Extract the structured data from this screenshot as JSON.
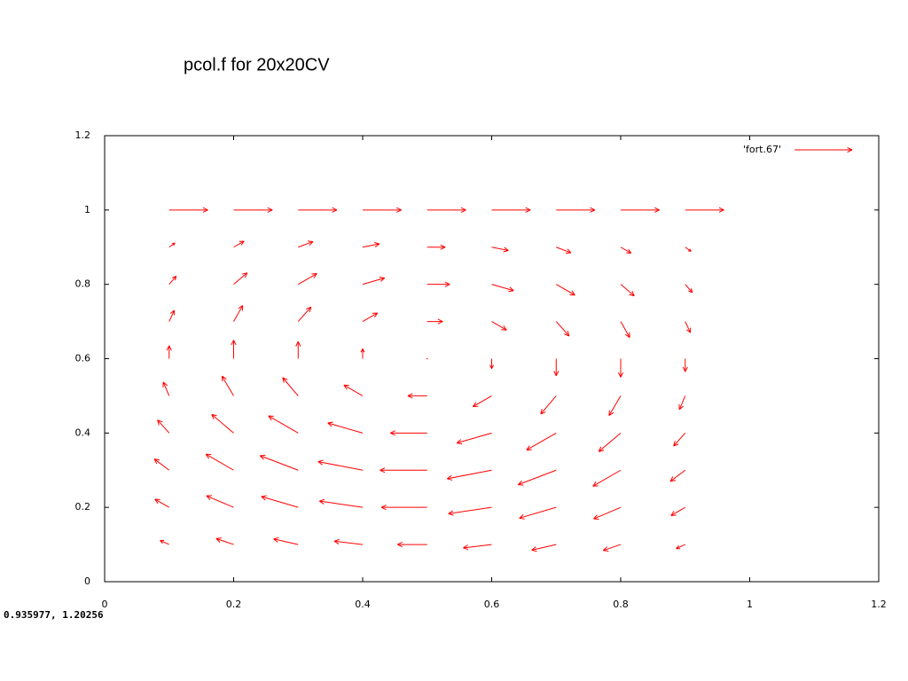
{
  "chart_data": {
    "type": "vector",
    "title": "pcol.f for 20x20CV",
    "legend": "'fort.67'",
    "legend_position": "top-right",
    "status": "0.935977,  1.20256",
    "color": "#ff0000",
    "xlim": [
      0,
      1.2
    ],
    "ylim": [
      0,
      1.2
    ],
    "xticks": [
      0,
      0.2,
      0.4,
      0.6,
      0.8,
      1,
      1.2
    ],
    "yticks": [
      0,
      0.2,
      0.4,
      0.6,
      0.8,
      1,
      1.2
    ],
    "x": [
      0.1,
      0.2,
      0.3,
      0.4,
      0.5,
      0.6,
      0.7,
      0.8,
      0.9,
      0.1,
      0.2,
      0.3,
      0.4,
      0.5,
      0.6,
      0.7,
      0.8,
      0.9,
      0.1,
      0.2,
      0.3,
      0.4,
      0.5,
      0.6,
      0.7,
      0.8,
      0.9,
      0.1,
      0.2,
      0.3,
      0.4,
      0.5,
      0.6,
      0.7,
      0.8,
      0.9,
      0.1,
      0.2,
      0.3,
      0.4,
      0.5,
      0.6,
      0.7,
      0.8,
      0.9,
      0.1,
      0.2,
      0.3,
      0.4,
      0.5,
      0.6,
      0.7,
      0.8,
      0.9,
      0.1,
      0.2,
      0.3,
      0.4,
      0.5,
      0.6,
      0.7,
      0.8,
      0.9,
      0.1,
      0.2,
      0.3,
      0.4,
      0.5,
      0.6,
      0.7,
      0.8,
      0.9,
      0.1,
      0.2,
      0.3,
      0.4,
      0.5,
      0.6,
      0.7,
      0.8,
      0.9,
      0.1,
      0.2,
      0.3,
      0.4,
      0.5,
      0.6,
      0.7,
      0.8,
      0.9
    ],
    "y": [
      0.1,
      0.1,
      0.1,
      0.1,
      0.1,
      0.1,
      0.1,
      0.1,
      0.1,
      0.2,
      0.2,
      0.2,
      0.2,
      0.2,
      0.2,
      0.2,
      0.2,
      0.2,
      0.3,
      0.3,
      0.3,
      0.3,
      0.3,
      0.3,
      0.3,
      0.3,
      0.3,
      0.4,
      0.4,
      0.4,
      0.4,
      0.4,
      0.4,
      0.4,
      0.4,
      0.4,
      0.5,
      0.5,
      0.5,
      0.5,
      0.5,
      0.5,
      0.5,
      0.5,
      0.5,
      0.6,
      0.6,
      0.6,
      0.6,
      0.6,
      0.6,
      0.6,
      0.6,
      0.6,
      0.7,
      0.7,
      0.7,
      0.7,
      0.7,
      0.7,
      0.7,
      0.7,
      0.7,
      0.8,
      0.8,
      0.8,
      0.8,
      0.8,
      0.8,
      0.8,
      0.8,
      0.8,
      0.9,
      0.9,
      0.9,
      0.9,
      0.9,
      0.9,
      0.9,
      0.9,
      0.9,
      1,
      1,
      1,
      1,
      1,
      1,
      1,
      1,
      1
    ],
    "dx": [
      -0.014,
      -0.027,
      -0.038,
      -0.044,
      -0.046,
      -0.044,
      -0.038,
      -0.027,
      -0.014,
      -0.022,
      -0.042,
      -0.057,
      -0.067,
      -0.071,
      -0.067,
      -0.057,
      -0.042,
      -0.022,
      -0.023,
      -0.043,
      -0.059,
      -0.069,
      -0.073,
      -0.069,
      -0.059,
      -0.043,
      -0.023,
      -0.018,
      -0.034,
      -0.046,
      -0.054,
      -0.057,
      -0.054,
      -0.046,
      -0.034,
      -0.018,
      -0.009,
      -0.018,
      -0.024,
      -0.029,
      -0.03,
      -0.029,
      -0.024,
      -0.018,
      -0.009,
      0,
      0,
      0,
      0,
      0,
      0,
      0,
      0,
      0,
      0.008,
      0.014,
      0.02,
      0.023,
      0.024,
      0.023,
      0.02,
      0.014,
      0.008,
      0.011,
      0.021,
      0.029,
      0.034,
      0.035,
      0.034,
      0.029,
      0.021,
      0.011,
      0.009,
      0.016,
      0.023,
      0.026,
      0.028,
      0.026,
      0.023,
      0.016,
      0.009,
      0.06,
      0.06,
      0.06,
      0.06,
      0.06,
      0.06,
      0.06,
      0.06,
      0.06
    ],
    "dy": [
      0.011,
      0.016,
      0.015,
      0.009,
      0,
      -0.009,
      -0.015,
      -0.016,
      -0.011,
      0.022,
      0.031,
      0.029,
      0.017,
      0,
      -0.017,
      -0.029,
      -0.031,
      -0.022,
      0.03,
      0.043,
      0.039,
      0.023,
      0,
      -0.023,
      -0.039,
      -0.043,
      -0.03,
      0.035,
      0.05,
      0.046,
      0.027,
      0,
      -0.027,
      -0.046,
      -0.05,
      -0.035,
      0.037,
      0.053,
      0.049,
      0.029,
      0,
      -0.029,
      -0.049,
      -0.053,
      -0.037,
      0.035,
      0.05,
      0.046,
      0.027,
      0,
      -0.027,
      -0.046,
      -0.05,
      -0.035,
      0.03,
      0.043,
      0.039,
      0.023,
      0,
      -0.023,
      -0.039,
      -0.043,
      -0.03,
      0.022,
      0.031,
      0.029,
      0.017,
      0,
      -0.017,
      -0.029,
      -0.031,
      -0.022,
      0.011,
      0.016,
      0.015,
      0.009,
      0,
      -0.009,
      -0.015,
      -0.016,
      -0.011,
      0,
      0,
      0,
      0,
      0,
      0,
      0,
      0,
      0
    ]
  }
}
